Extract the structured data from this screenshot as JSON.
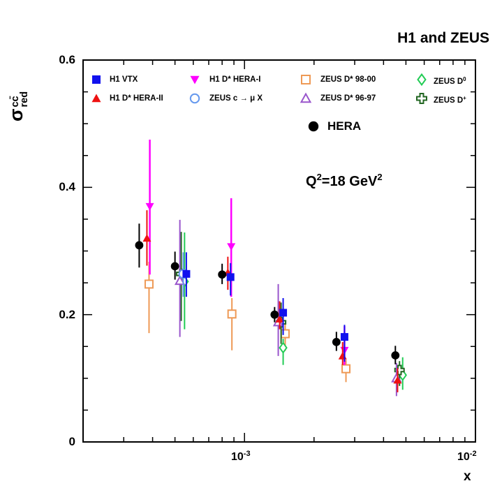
{
  "title": "H1 and ZEUS",
  "axes": {
    "y_title": {
      "base": "σ",
      "sup": "cc̄",
      "sub": "red"
    },
    "x_title": "x",
    "y_tick_labels": [
      "0",
      "0.2",
      "0.4",
      "0.6"
    ],
    "x_tick_labels": [
      {
        "base": "10",
        "sup": "-3"
      },
      {
        "base": "10",
        "sup": "-2"
      }
    ]
  },
  "annotation": {
    "base1": "Q",
    "sup1": "2",
    "base2": "=18 GeV",
    "sup2": "2"
  },
  "chart_data": {
    "type": "scatter",
    "title": "H1 and ZEUS",
    "xlabel": "x",
    "ylabel": "sigma_red_ccbar",
    "x_scale": "log",
    "xlim": [
      0.0002,
      0.01
    ],
    "ylim": [
      0,
      0.6
    ],
    "y_major_step": 0.2,
    "y_minor_step": 0.05,
    "grid": false,
    "legend_position": "top-inside",
    "annotation": "Q^2 = 18 GeV^2",
    "x_clusters": [
      0.00035,
      0.0005,
      0.0008,
      0.00135,
      0.0025,
      0.0045
    ],
    "point_format": [
      "x",
      "y",
      "err_down",
      "err_up"
    ],
    "series": [
      {
        "name": "h1-vtx",
        "label": "H1 VTX",
        "marker": "square-filled",
        "color": "#1111ee",
        "points": [
          [
            0.00056,
            0.264,
            0.036,
            0.034
          ],
          [
            0.00087,
            0.259,
            0.029,
            0.022
          ],
          [
            0.00147,
            0.203,
            0.035,
            0.023
          ],
          [
            0.00271,
            0.165,
            0.039,
            0.019
          ]
        ]
      },
      {
        "name": "h1-dstar-hera2",
        "label": "H1 D* HERA-II",
        "marker": "triangle-up-filled",
        "color": "#ee1111",
        "points": [
          [
            0.000378,
            0.32,
            0.043,
            0.044
          ],
          [
            0.000847,
            0.266,
            0.027,
            0.025
          ],
          [
            0.00142,
            0.193,
            0.016,
            0.028
          ],
          [
            0.00266,
            0.135,
            0.014,
            0.022
          ],
          [
            0.0046,
            0.097,
            0.019,
            0.019
          ]
        ]
      },
      {
        "name": "h1-dstar-hera1",
        "label": "H1 D* HERA-I",
        "marker": "triangle-down-filled",
        "color": "#ff00ff",
        "points": [
          [
            0.000389,
            0.37,
            0.107,
            0.105
          ],
          [
            0.000876,
            0.307,
            0.079,
            0.076
          ],
          [
            0.00271,
            0.144,
            0.023,
            0.038
          ]
        ]
      },
      {
        "name": "zeus-c-mu-x",
        "label": "ZEUS c → μ X",
        "marker": "circle-open",
        "color": "#6699ee",
        "points": [
          [
            0.000543,
            0.264,
            0.036,
            0.034
          ]
        ]
      },
      {
        "name": "zeus-dstar-98-00",
        "label": "ZEUS D* 98-00",
        "marker": "square-open",
        "color": "#ee9955",
        "points": [
          [
            0.000386,
            0.248,
            0.077,
            0.035
          ],
          [
            0.000882,
            0.201,
            0.057,
            0.025
          ],
          [
            0.0015,
            0.17,
            0.027,
            0.016
          ],
          [
            0.00275,
            0.115,
            0.021,
            0.014
          ]
        ]
      },
      {
        "name": "zeus-dstar-96-97",
        "label": "ZEUS D* 96-97",
        "marker": "triangle-up-open",
        "color": "#9955cc",
        "points": [
          [
            0.000525,
            0.253,
            0.088,
            0.096
          ],
          [
            0.0014,
            0.188,
            0.053,
            0.06
          ],
          [
            0.00455,
            0.1,
            0.028,
            0.024
          ]
        ]
      },
      {
        "name": "zeus-d0",
        "label": "ZEUS D",
        "label_sup": "0",
        "marker": "diamond-open",
        "color": "#22cc55",
        "points": [
          [
            0.00055,
            0.252,
            0.075,
            0.077
          ],
          [
            0.00147,
            0.148,
            0.027,
            0.014
          ],
          [
            0.00484,
            0.105,
            0.023,
            0.028
          ]
        ]
      },
      {
        "name": "zeus-dplus",
        "label": "ZEUS D",
        "label_sup": "+",
        "marker": "cross-open",
        "color": "#226622",
        "points": [
          [
            0.000532,
            0.264,
            0.074,
            0.066
          ],
          [
            0.00144,
            0.188,
            0.034,
            0.031
          ],
          [
            0.00469,
            0.113,
            0.025,
            0.014
          ]
        ]
      },
      {
        "name": "hera-combined",
        "label": "HERA",
        "marker": "circle-filled",
        "color": "#000000",
        "points": [
          [
            0.00035,
            0.309,
            0.035,
            0.034
          ],
          [
            0.0005,
            0.276,
            0.021,
            0.023
          ],
          [
            0.0008,
            0.263,
            0.015,
            0.017
          ],
          [
            0.00135,
            0.2,
            0.012,
            0.012
          ],
          [
            0.0025,
            0.157,
            0.014,
            0.016
          ],
          [
            0.0045,
            0.136,
            0.014,
            0.015
          ]
        ]
      }
    ]
  }
}
